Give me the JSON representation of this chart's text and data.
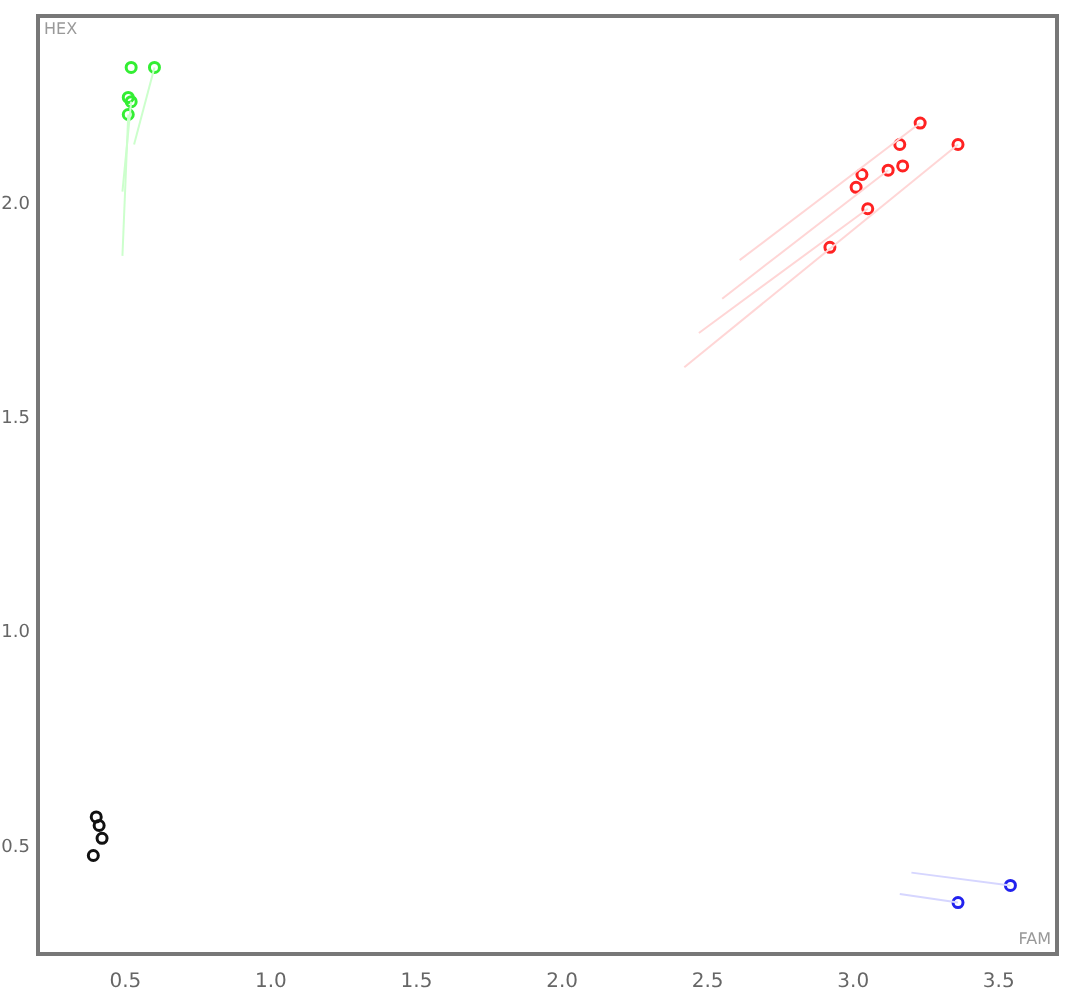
{
  "chart_data": {
    "type": "scatter",
    "xlabel": "FAM",
    "ylabel": "HEX",
    "xlim": [
      0.2,
      3.7
    ],
    "ylim": [
      0.25,
      2.44
    ],
    "xticks": [
      0.5,
      {
        "value": 1,
        "label": "1.0"
      },
      1.5,
      {
        "value": 2,
        "label": "2.0"
      },
      2.5,
      {
        "value": 3,
        "label": "3.0"
      },
      3.5
    ],
    "yticks": [
      0.5,
      {
        "value": 1,
        "label": "1.0"
      },
      1.5,
      {
        "value": 2,
        "label": "2.0"
      }
    ],
    "grid": false,
    "legend": false,
    "marker": "circle",
    "series": [
      {
        "type": "line",
        "marker": "none",
        "color": "#ccffcc",
        "x": [
          0.49,
          0.51
        ],
        "values": [
          1.88,
          2.21
        ]
      },
      {
        "type": "line",
        "marker": "none",
        "color": "#ccffcc",
        "x": [
          0.53,
          0.6
        ],
        "values": [
          2.14,
          2.32
        ]
      },
      {
        "type": "line",
        "marker": "none",
        "color": "#ccffcc",
        "x": [
          0.49,
          0.52
        ],
        "values": [
          2.03,
          2.24
        ]
      },
      {
        "type": "line",
        "marker": "none",
        "color": "#ffd6d6",
        "x": [
          2.42,
          3.36
        ],
        "values": [
          1.62,
          2.14
        ]
      },
      {
        "type": "line",
        "marker": "none",
        "color": "#ffd6d6",
        "x": [
          2.47,
          3.05
        ],
        "values": [
          1.7,
          1.99
        ]
      },
      {
        "type": "line",
        "marker": "none",
        "color": "#ffd6d6",
        "x": [
          2.61,
          3.23
        ],
        "values": [
          1.87,
          2.19
        ]
      },
      {
        "type": "line",
        "marker": "none",
        "color": "#ffd6d6",
        "x": [
          2.55,
          3.12
        ],
        "values": [
          1.78,
          2.08
        ]
      },
      {
        "type": "line",
        "marker": "none",
        "color": "#d6d6ff",
        "x": [
          3.2,
          3.54
        ],
        "values": [
          0.44,
          0.41
        ]
      },
      {
        "type": "line",
        "marker": "none",
        "color": "#d6d6ff",
        "x": [
          3.16,
          3.36
        ],
        "values": [
          0.39,
          0.37
        ]
      },
      {
        "color": "#33ee33",
        "x": [
          0.52,
          0.6,
          0.51,
          0.52,
          0.51
        ],
        "values": [
          2.32,
          2.32,
          2.25,
          2.24,
          2.21
        ]
      },
      {
        "color": "#ff2222",
        "x": [
          3.23,
          3.16,
          3.36,
          3.12,
          3.17,
          3.03,
          3.01,
          3.05,
          2.92
        ],
        "values": [
          2.19,
          2.14,
          2.14,
          2.08,
          2.09,
          2.07,
          2.04,
          1.99,
          1.9
        ]
      },
      {
        "color": "#111111",
        "x": [
          0.4,
          0.41,
          0.42,
          0.39
        ],
        "values": [
          0.57,
          0.55,
          0.52,
          0.48
        ]
      },
      {
        "color": "#2222ee",
        "x": [
          3.54,
          3.36
        ],
        "values": [
          0.41,
          0.37
        ]
      }
    ]
  }
}
